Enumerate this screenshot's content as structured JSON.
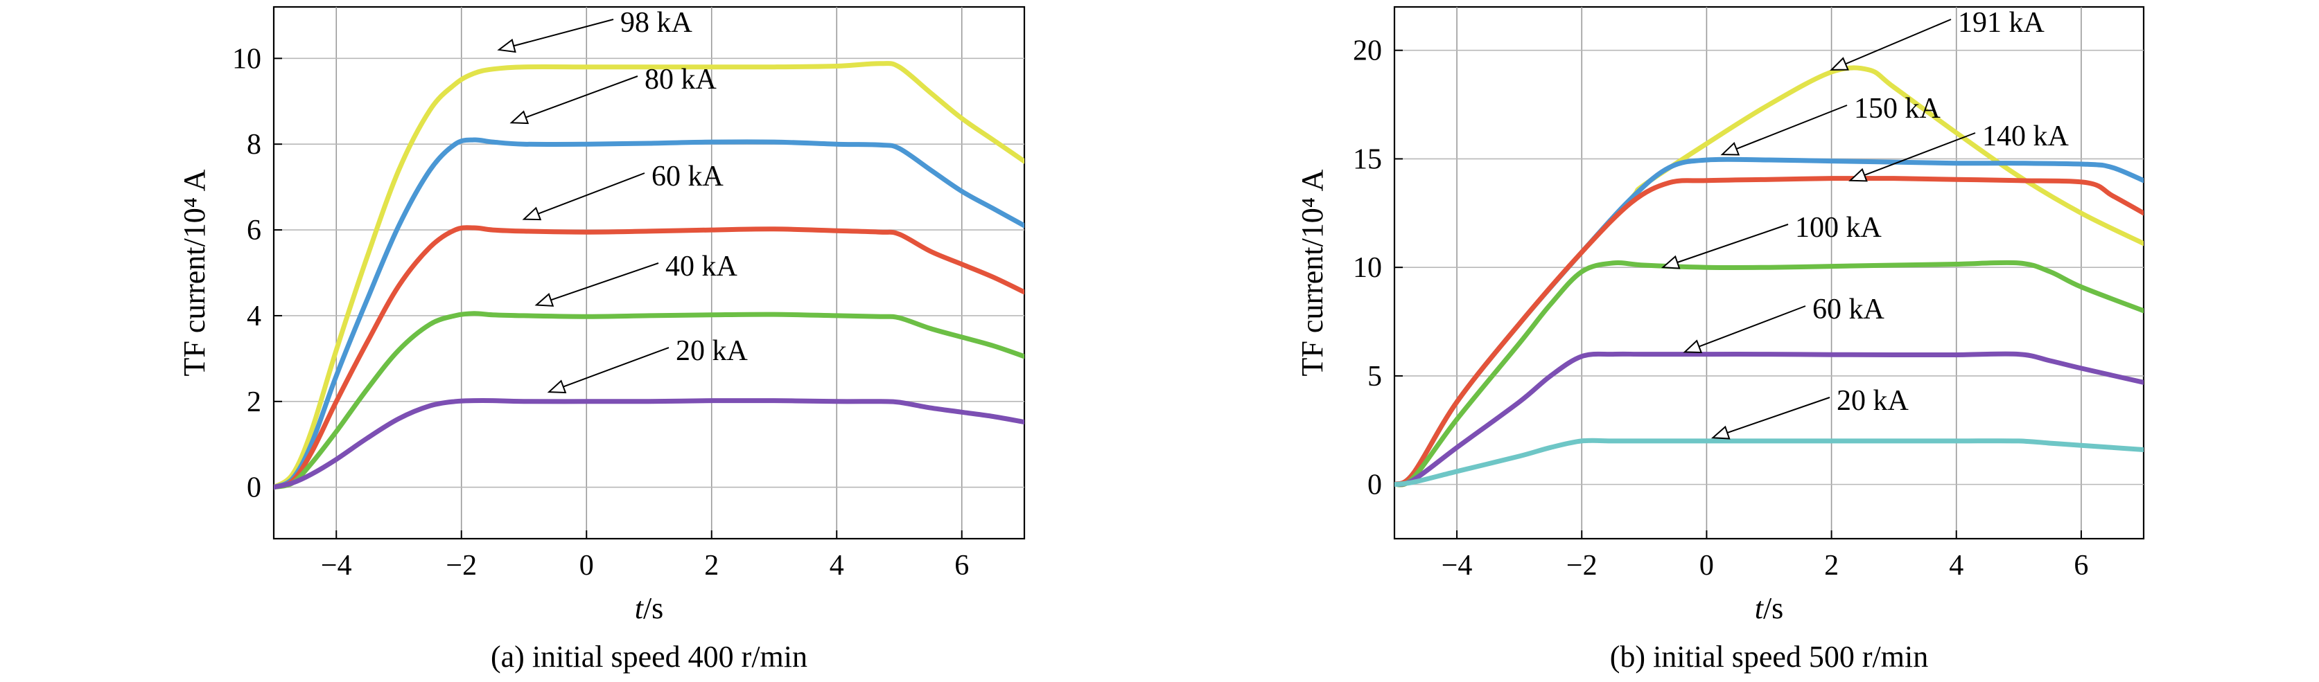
{
  "chart_data": [
    {
      "type": "line",
      "caption": "(a) initial speed 400 r/min",
      "xlabel_italic": "t",
      "xlabel_unit": "/s",
      "ylabel": "TF current/10⁴ A",
      "xlim": [
        -5,
        7
      ],
      "ylim": [
        -1.2,
        11.2
      ],
      "xticks": [
        -4,
        -2,
        0,
        2,
        4,
        6
      ],
      "xtick_labels": [
        "−4",
        "−2",
        "0",
        "2",
        "4",
        "6"
      ],
      "yticks": [
        0,
        2,
        4,
        6,
        8,
        10
      ],
      "ytick_labels": [
        "0",
        "2",
        "4",
        "6",
        "8",
        "10"
      ],
      "grid": true,
      "series": [
        {
          "color": "#e2e34a",
          "x": [
            -5,
            -4.7,
            -4.4,
            -4,
            -3.5,
            -3,
            -2.5,
            -2.1,
            -1.8,
            -1.5,
            -1,
            0,
            1,
            2,
            3,
            4,
            4.7,
            5,
            5.5,
            6,
            6.5,
            7
          ],
          "y": [
            0,
            0.3,
            1.3,
            3.2,
            5.4,
            7.4,
            8.8,
            9.4,
            9.65,
            9.75,
            9.8,
            9.8,
            9.8,
            9.8,
            9.8,
            9.82,
            9.88,
            9.8,
            9.2,
            8.6,
            8.1,
            7.6
          ]
        },
        {
          "color": "#4a97d4",
          "x": [
            -5,
            -4.7,
            -4.4,
            -4,
            -3.5,
            -3,
            -2.5,
            -2.1,
            -1.8,
            -1.5,
            -1,
            0,
            1,
            2,
            3,
            4,
            4.7,
            5,
            5.5,
            6,
            6.5,
            7
          ],
          "y": [
            0,
            0.2,
            1.0,
            2.6,
            4.4,
            6.1,
            7.4,
            8.0,
            8.1,
            8.05,
            8.0,
            8.0,
            8.02,
            8.05,
            8.05,
            8.0,
            7.98,
            7.9,
            7.4,
            6.9,
            6.5,
            6.1
          ]
        },
        {
          "color": "#e4533a",
          "x": [
            -5,
            -4.7,
            -4.4,
            -4,
            -3.5,
            -3,
            -2.5,
            -2.1,
            -1.8,
            -1.5,
            -1,
            0,
            1,
            2,
            3,
            4,
            4.7,
            5,
            5.5,
            6,
            6.5,
            7
          ],
          "y": [
            0,
            0.15,
            0.8,
            2.0,
            3.4,
            4.7,
            5.6,
            6.0,
            6.05,
            6.0,
            5.97,
            5.95,
            5.97,
            6.0,
            6.02,
            5.98,
            5.95,
            5.9,
            5.5,
            5.2,
            4.9,
            4.55
          ]
        },
        {
          "color": "#6cbf45",
          "x": [
            -5,
            -4.7,
            -4.4,
            -4,
            -3.5,
            -3,
            -2.5,
            -2.1,
            -1.8,
            -1.5,
            -1,
            0,
            1,
            2,
            3,
            4,
            4.7,
            5,
            5.5,
            6,
            6.5,
            7
          ],
          "y": [
            0,
            0.1,
            0.55,
            1.3,
            2.3,
            3.2,
            3.8,
            4.0,
            4.05,
            4.02,
            4.0,
            3.98,
            4.0,
            4.02,
            4.03,
            4.0,
            3.98,
            3.95,
            3.7,
            3.5,
            3.3,
            3.05
          ]
        },
        {
          "color": "#7c4fb3",
          "x": [
            -5,
            -4.7,
            -4.4,
            -4,
            -3.5,
            -3,
            -2.5,
            -2.1,
            -1.8,
            -1.5,
            -1,
            0,
            1,
            2,
            3,
            4,
            4.7,
            5,
            5.5,
            6,
            6.5,
            7
          ],
          "y": [
            0,
            0.1,
            0.3,
            0.65,
            1.15,
            1.6,
            1.9,
            2.0,
            2.02,
            2.02,
            2.0,
            2.0,
            2.0,
            2.02,
            2.02,
            2.0,
            2.0,
            1.98,
            1.85,
            1.75,
            1.65,
            1.52
          ]
        }
      ],
      "annotations": [
        {
          "text": "98 kA",
          "point": [
            -1.4,
            10.2
          ]
        },
        {
          "text": "80 kA",
          "point": [
            -1.2,
            8.5
          ]
        },
        {
          "text": "60 kA",
          "point": [
            -1.0,
            6.25
          ]
        },
        {
          "text": "40 kA",
          "point": [
            -0.8,
            4.25
          ]
        },
        {
          "text": "20 kA",
          "point": [
            -0.6,
            2.22
          ]
        }
      ]
    },
    {
      "type": "line",
      "caption": "(b) initial speed 500 r/min",
      "xlabel_italic": "t",
      "xlabel_unit": "/s",
      "ylabel": "TF current/10⁴ A",
      "xlim": [
        -5,
        7
      ],
      "ylim": [
        -2.5,
        22.0
      ],
      "xticks": [
        -4,
        -2,
        0,
        2,
        4,
        6
      ],
      "xtick_labels": [
        "−4",
        "−2",
        "0",
        "2",
        "4",
        "6"
      ],
      "yticks": [
        0,
        5,
        10,
        15,
        20
      ],
      "ytick_labels": [
        "0",
        "5",
        "10",
        "15",
        "20"
      ],
      "grid": true,
      "series": [
        {
          "color": "#e2e34a",
          "x": [
            -5,
            -4.7,
            -4,
            -3,
            -2,
            -1.2,
            -1,
            0,
            1,
            2,
            2.6,
            3,
            4,
            5,
            6,
            7
          ],
          "y": [
            0,
            0.5,
            3.8,
            7.4,
            10.7,
            13.2,
            13.8,
            15.7,
            17.5,
            19.0,
            19.1,
            18.3,
            16.2,
            14.2,
            12.5,
            11.1
          ]
        },
        {
          "color": "#4a97d4",
          "x": [
            -5,
            -4.7,
            -4,
            -3,
            -2,
            -1.2,
            -0.6,
            0,
            1,
            2,
            3,
            4,
            5,
            6.1,
            6.5,
            7
          ],
          "y": [
            0,
            0.5,
            3.8,
            7.4,
            10.7,
            13.2,
            14.6,
            14.95,
            14.95,
            14.9,
            14.85,
            14.8,
            14.8,
            14.75,
            14.6,
            14.0
          ]
        },
        {
          "color": "#e4533a",
          "x": [
            -5,
            -4.7,
            -4,
            -3,
            -2,
            -1.2,
            -0.6,
            0,
            1,
            2,
            3,
            4,
            5,
            6.1,
            6.5,
            7
          ],
          "y": [
            0,
            0.5,
            3.8,
            7.4,
            10.7,
            13.0,
            13.9,
            14.0,
            14.05,
            14.1,
            14.1,
            14.05,
            14.0,
            13.9,
            13.3,
            12.5
          ]
        },
        {
          "color": "#6cbf45",
          "x": [
            -5,
            -4.7,
            -4,
            -3,
            -2.5,
            -2,
            -1.5,
            -1,
            0,
            1,
            2,
            3,
            4,
            5,
            5.5,
            6,
            7
          ],
          "y": [
            0,
            0.3,
            3.0,
            6.5,
            8.3,
            9.8,
            10.2,
            10.1,
            10.0,
            10.0,
            10.05,
            10.1,
            10.15,
            10.2,
            9.8,
            9.1,
            8.0
          ]
        },
        {
          "color": "#7c4fb3",
          "x": [
            -5,
            -4.7,
            -4,
            -3,
            -2.5,
            -2,
            -1.5,
            -1,
            0,
            1,
            2,
            3,
            4,
            5,
            5.5,
            6,
            7
          ],
          "y": [
            0,
            0.2,
            1.7,
            3.8,
            5.0,
            5.9,
            6.0,
            6.0,
            6.0,
            6.0,
            5.98,
            5.97,
            5.97,
            6.0,
            5.7,
            5.35,
            4.7
          ]
        },
        {
          "color": "#6ec6c6",
          "x": [
            -5,
            -4.7,
            -4,
            -3,
            -2.5,
            -2,
            -1.5,
            -1,
            0,
            1,
            2,
            3,
            4,
            5,
            5.5,
            6,
            7
          ],
          "y": [
            0,
            0.1,
            0.6,
            1.3,
            1.7,
            2.0,
            2.0,
            2.0,
            2.0,
            2.0,
            2.0,
            2.0,
            2.0,
            2.0,
            1.9,
            1.8,
            1.6
          ]
        }
      ],
      "annotations": [
        {
          "text": "191 kA",
          "point": [
            2.0,
            19.1
          ]
        },
        {
          "text": "150 kA",
          "point": [
            0.25,
            15.2
          ]
        },
        {
          "text": "140 kA",
          "point": [
            2.3,
            14.0
          ]
        },
        {
          "text": "100 kA",
          "point": [
            -0.7,
            10.0
          ]
        },
        {
          "text": "60 kA",
          "point": [
            -0.35,
            6.1
          ]
        },
        {
          "text": "20 kA",
          "point": [
            0.1,
            2.15
          ]
        }
      ]
    }
  ]
}
